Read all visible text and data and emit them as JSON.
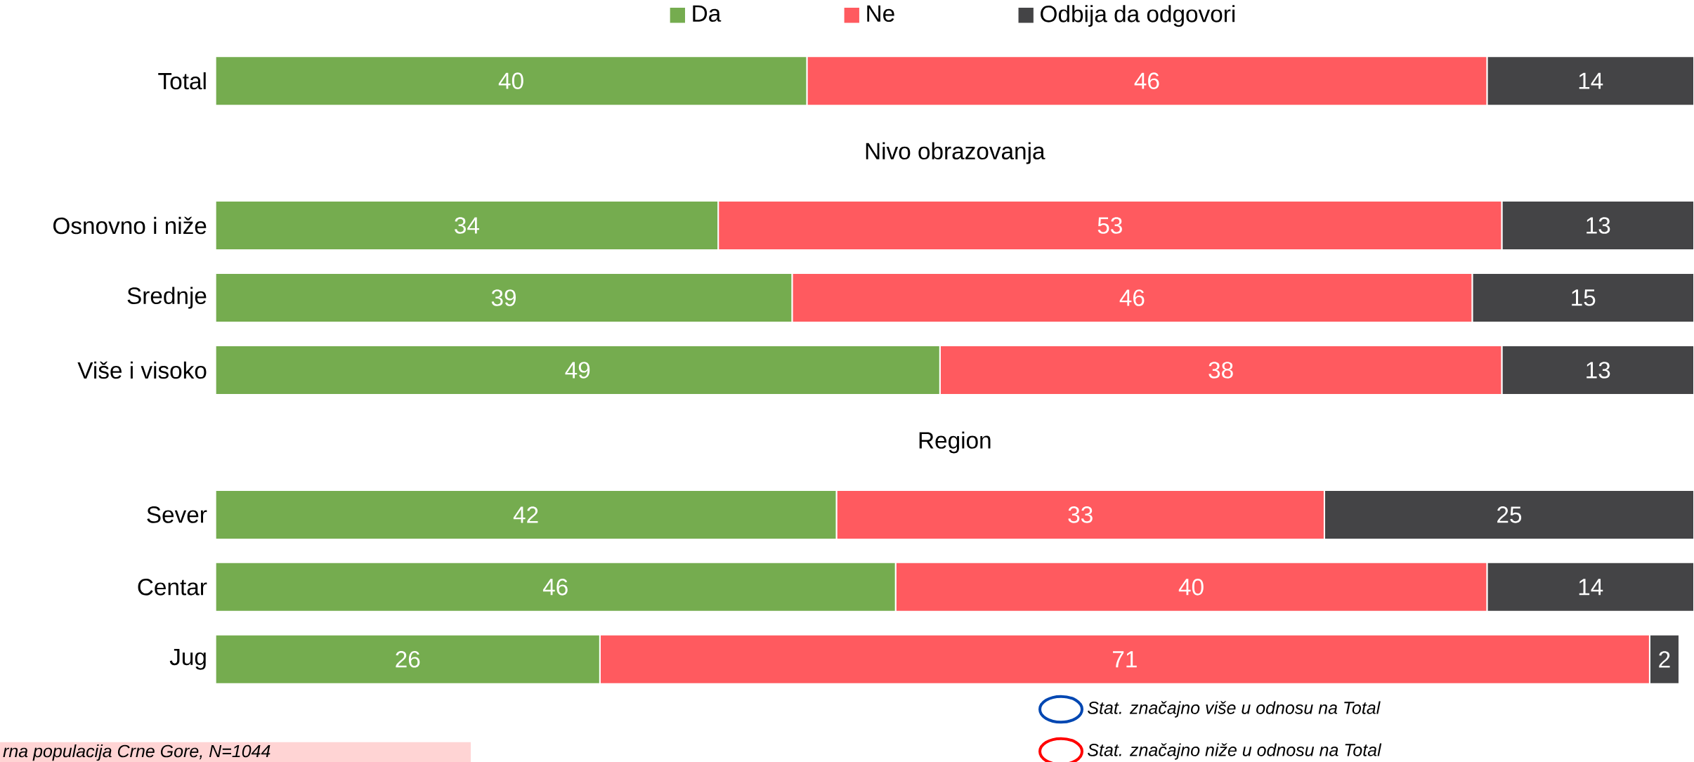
{
  "chart_data": {
    "type": "bar",
    "orientation": "horizontal",
    "stacked": true,
    "data_labels": true,
    "legend": "top",
    "categories": [
      "Total",
      null,
      "Osnovno i niže",
      "Srednje",
      "Više i visoko",
      null,
      "Sever",
      "Centar",
      "Jug"
    ],
    "series": [
      {
        "name": "Da",
        "color": "#75ac4f",
        "values": [
          40,
          null,
          34,
          39,
          49,
          null,
          42,
          46,
          26
        ]
      },
      {
        "name": "Ne",
        "color": "#ff5a5f",
        "values": [
          46,
          null,
          53,
          46,
          38,
          null,
          33,
          40,
          71
        ]
      },
      {
        "name": "Odbija da odgovori",
        "color": "#444446",
        "values": [
          14,
          null,
          13,
          15,
          13,
          null,
          25,
          14,
          2
        ]
      }
    ],
    "annotations": [
      "Nivo obrazovanja",
      "Region",
      "rna populacija Crne Gore, N=1044",
      "Stat. značajno više u odnosu na Total",
      "Stat. značajno niže u odnosu na Total"
    ]
  }
}
